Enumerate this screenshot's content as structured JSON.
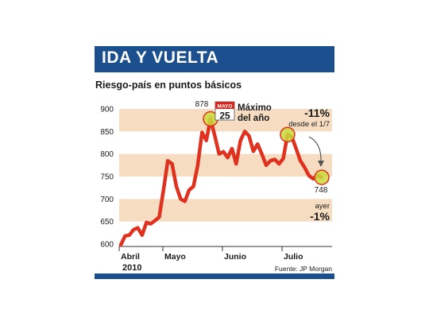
{
  "title": "IDA Y VUELTA",
  "subtitle": "Riesgo-país en puntos básicos",
  "year": "2010",
  "source_label": "Fuente:",
  "source_name": "JP Morgan",
  "colors": {
    "brand": "#1c4f8e",
    "band": "#f6dcc0",
    "line": "#e0301e",
    "marker": "#c8d93a"
  },
  "annotations": {
    "peak_value": "878",
    "calendar_month": "MAYO",
    "calendar_day": "25",
    "peak_label_1": "Máximo",
    "peak_label_2": "del año",
    "change_pct": "-11%",
    "change_since": "desde el 1/7",
    "last_value": "748",
    "yesterday_label": "ayer",
    "yesterday_pct": "-1%"
  },
  "chart_data": {
    "type": "line",
    "title": "IDA Y VUELTA",
    "subtitle": "Riesgo-país en puntos básicos",
    "ylim": [
      600,
      900
    ],
    "yticks": [
      600,
      650,
      700,
      750,
      800,
      850,
      900
    ],
    "xticks": [
      "Abril",
      "Mayo",
      "Junio",
      "Julio"
    ],
    "grid": false,
    "series": [
      {
        "values": [
          598,
          618,
          620,
          632,
          636,
          620,
          648,
          645,
          652,
          660,
          720,
          785,
          778,
          728,
          700,
          695,
          720,
          728,
          775,
          848,
          830,
          878,
          840,
          800,
          805,
          792,
          812,
          778,
          830,
          850,
          840,
          806,
          822,
          800,
          775,
          785,
          788,
          778,
          790,
          843,
          838,
          812,
          785,
          770,
          752,
          745,
          752,
          748
        ]
      }
    ]
  }
}
